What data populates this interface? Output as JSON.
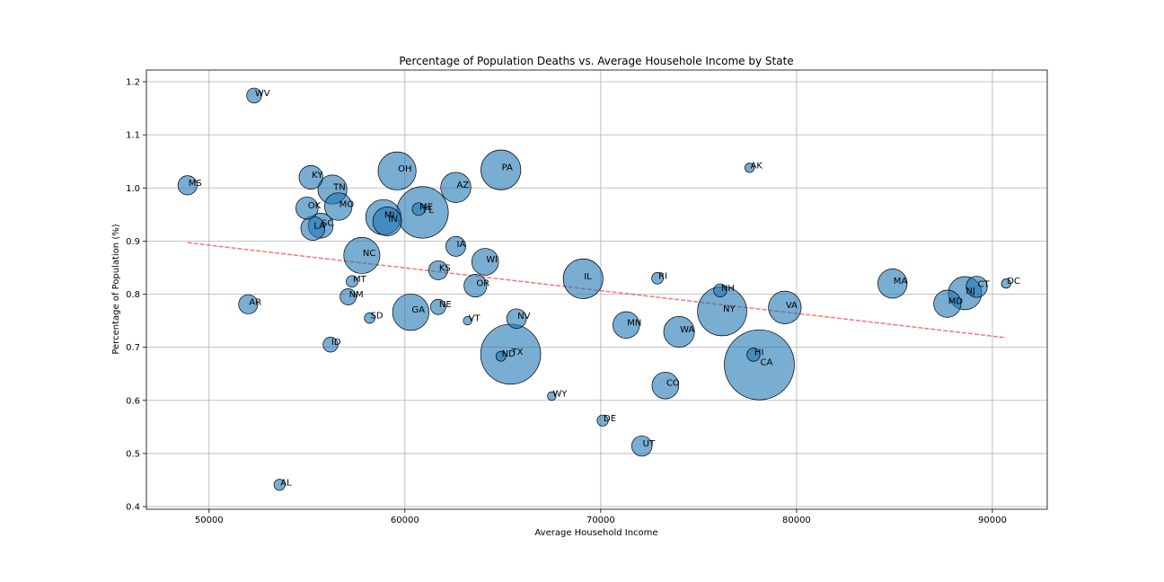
{
  "chart_data": {
    "type": "scatter",
    "title": "Percentage of Population Deaths vs. Average Househole Income by State",
    "xlabel": "Average Household Income",
    "ylabel": "Percentage of Population (%)",
    "xlim": [
      46800,
      92800
    ],
    "ylim": [
      0.395,
      1.222
    ],
    "xticks": [
      50000,
      60000,
      70000,
      80000,
      90000
    ],
    "yticks": [
      0.4,
      0.5,
      0.6,
      0.7,
      0.8,
      0.9,
      1.0,
      1.1,
      1.2
    ],
    "grid": true,
    "marker_color": "#1f77b4",
    "trendline_color": "#ff0000",
    "trendline": {
      "x": [
        48900,
        90700
      ],
      "y": [
        0.897,
        0.718
      ]
    },
    "points": [
      {
        "label": "WV",
        "x": 52300,
        "y": 1.174,
        "size": 1.8
      },
      {
        "label": "MS",
        "x": 48900,
        "y": 1.005,
        "size": 3.0
      },
      {
        "label": "KY",
        "x": 55200,
        "y": 1.02,
        "size": 4.5
      },
      {
        "label": "TN",
        "x": 56300,
        "y": 0.997,
        "size": 6.8
      },
      {
        "label": "OK",
        "x": 55000,
        "y": 0.962,
        "size": 4.0
      },
      {
        "label": "MO",
        "x": 56600,
        "y": 0.965,
        "size": 6.1
      },
      {
        "label": "LA",
        "x": 55300,
        "y": 0.924,
        "size": 4.7
      },
      {
        "label": "SC",
        "x": 55700,
        "y": 0.929,
        "size": 5.0
      },
      {
        "label": "OH",
        "x": 59600,
        "y": 1.032,
        "size": 11.7
      },
      {
        "label": "PA",
        "x": 64900,
        "y": 1.034,
        "size": 12.8
      },
      {
        "label": "AZ",
        "x": 62600,
        "y": 1.001,
        "size": 7.3
      },
      {
        "label": "AK",
        "x": 77600,
        "y": 1.038,
        "size": 0.7
      },
      {
        "label": "MI",
        "x": 58900,
        "y": 0.945,
        "size": 10.0
      },
      {
        "label": "IN",
        "x": 59100,
        "y": 0.937,
        "size": 6.7
      },
      {
        "label": "ME",
        "x": 60700,
        "y": 0.96,
        "size": 1.3
      },
      {
        "label": "FL",
        "x": 60900,
        "y": 0.954,
        "size": 21.5
      },
      {
        "label": "IA",
        "x": 62600,
        "y": 0.89,
        "size": 3.2
      },
      {
        "label": "NC",
        "x": 57800,
        "y": 0.873,
        "size": 10.5
      },
      {
        "label": "WI",
        "x": 64100,
        "y": 0.861,
        "size": 5.8
      },
      {
        "label": "KS",
        "x": 61700,
        "y": 0.845,
        "size": 2.9
      },
      {
        "label": "MT",
        "x": 57300,
        "y": 0.824,
        "size": 1.1
      },
      {
        "label": "OR",
        "x": 63600,
        "y": 0.816,
        "size": 4.2
      },
      {
        "label": "IL",
        "x": 69100,
        "y": 0.829,
        "size": 12.7
      },
      {
        "label": "RI",
        "x": 72900,
        "y": 0.83,
        "size": 1.1
      },
      {
        "label": "NH",
        "x": 76100,
        "y": 0.807,
        "size": 1.4
      },
      {
        "label": "MA",
        "x": 84900,
        "y": 0.82,
        "size": 6.9
      },
      {
        "label": "CT",
        "x": 89200,
        "y": 0.814,
        "size": 3.6
      },
      {
        "label": "DC",
        "x": 90700,
        "y": 0.82,
        "size": 0.7
      },
      {
        "label": "NJ",
        "x": 88600,
        "y": 0.802,
        "size": 8.9
      },
      {
        "label": "MD",
        "x": 87700,
        "y": 0.782,
        "size": 6.0
      },
      {
        "label": "AR",
        "x": 52000,
        "y": 0.781,
        "size": 3.0
      },
      {
        "label": "NM",
        "x": 57100,
        "y": 0.795,
        "size": 2.1
      },
      {
        "label": "NE",
        "x": 61700,
        "y": 0.776,
        "size": 1.9
      },
      {
        "label": "GA",
        "x": 60300,
        "y": 0.766,
        "size": 10.7
      },
      {
        "label": "SD",
        "x": 58200,
        "y": 0.755,
        "size": 0.9
      },
      {
        "label": "VT",
        "x": 63200,
        "y": 0.75,
        "size": 0.6
      },
      {
        "label": "NV",
        "x": 65700,
        "y": 0.754,
        "size": 3.1
      },
      {
        "label": "MN",
        "x": 71300,
        "y": 0.742,
        "size": 5.7
      },
      {
        "label": "NY",
        "x": 76200,
        "y": 0.768,
        "size": 19.5
      },
      {
        "label": "VA",
        "x": 79400,
        "y": 0.775,
        "size": 8.6
      },
      {
        "label": "WA",
        "x": 74000,
        "y": 0.729,
        "size": 7.6
      },
      {
        "label": "ID",
        "x": 56200,
        "y": 0.705,
        "size": 1.8
      },
      {
        "label": "TX",
        "x": 65400,
        "y": 0.687,
        "size": 29.0
      },
      {
        "label": "ND",
        "x": 64900,
        "y": 0.683,
        "size": 0.8
      },
      {
        "label": "HI",
        "x": 77800,
        "y": 0.686,
        "size": 1.4
      },
      {
        "label": "CA",
        "x": 78100,
        "y": 0.667,
        "size": 39.5
      },
      {
        "label": "CO",
        "x": 73300,
        "y": 0.628,
        "size": 5.8
      },
      {
        "label": "WY",
        "x": 67500,
        "y": 0.608,
        "size": 0.6
      },
      {
        "label": "DE",
        "x": 70100,
        "y": 0.562,
        "size": 1.0
      },
      {
        "label": "UT",
        "x": 72100,
        "y": 0.514,
        "size": 3.3
      },
      {
        "label": "AL",
        "x": 53600,
        "y": 0.441,
        "size": 1.0
      }
    ]
  }
}
